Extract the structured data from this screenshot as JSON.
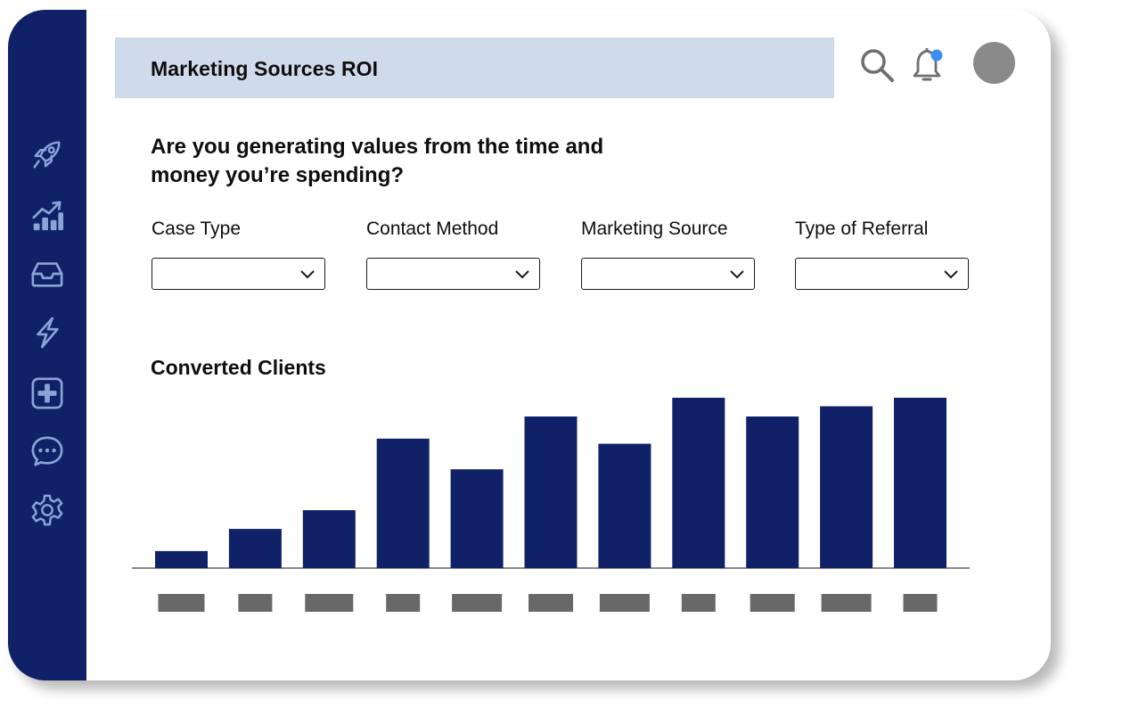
{
  "header": {
    "title": "Marketing Sources ROI"
  },
  "sidebar": {
    "items": [
      {
        "icon": "rocket-icon"
      },
      {
        "icon": "growth-chart-icon"
      },
      {
        "icon": "inbox-icon"
      },
      {
        "icon": "lightning-icon"
      },
      {
        "icon": "add-box-icon"
      },
      {
        "icon": "chat-icon"
      },
      {
        "icon": "gear-icon"
      }
    ]
  },
  "topbar": {
    "search_icon": "search-icon",
    "notification_icon": "bell-icon",
    "notification_dot_color": "#3d8ef0"
  },
  "main": {
    "question": "Are you generating values from the time and money you’re spending?",
    "filters": [
      {
        "label": "Case Type",
        "value": ""
      },
      {
        "label": "Contact Method",
        "value": ""
      },
      {
        "label": "Marketing Source",
        "value": ""
      },
      {
        "label": "Type of Referral",
        "value": ""
      }
    ],
    "chart_title": "Converted Clients"
  },
  "colors": {
    "sidebar": "#102168",
    "bar": "#102168",
    "title_bar": "#cfdaea",
    "placeholder_label": "#686868",
    "avatar": "#8a8a8a"
  },
  "chart_data": {
    "type": "bar",
    "title": "Converted Clients",
    "categories": [
      "",
      "",
      "",
      "",
      "",
      "",
      "",
      "",
      "",
      "",
      ""
    ],
    "values": [
      10,
      23,
      34,
      76,
      58,
      89,
      73,
      100,
      89,
      95,
      100
    ],
    "ylim": [
      0,
      100
    ],
    "grid": false,
    "legend": "none",
    "tick_labels": "placeholder-blocks"
  }
}
